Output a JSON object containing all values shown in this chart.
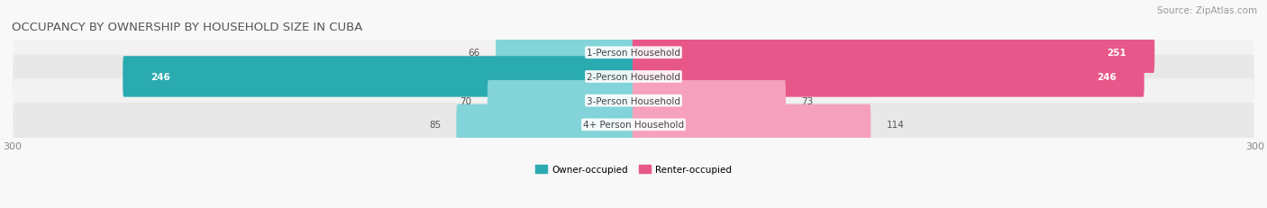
{
  "title": "OCCUPANCY BY OWNERSHIP BY HOUSEHOLD SIZE IN CUBA",
  "source": "Source: ZipAtlas.com",
  "categories": [
    "1-Person Household",
    "2-Person Household",
    "3-Person Household",
    "4+ Person Household"
  ],
  "owner_values": [
    66,
    246,
    70,
    85
  ],
  "renter_values": [
    251,
    246,
    73,
    114
  ],
  "owner_color_dark": "#2aabb0",
  "owner_color_light": "#82d4d8",
  "renter_color_dark": "#e8578a",
  "renter_color_light": "#f5a0bc",
  "row_bg_color_light": "#f2f2f2",
  "row_bg_color_dark": "#e8e8e8",
  "x_min": -300,
  "x_max": 300,
  "legend_owner": "Owner-occupied",
  "legend_renter": "Renter-occupied",
  "title_fontsize": 9.5,
  "source_fontsize": 7.5,
  "label_fontsize": 7.5,
  "value_fontsize": 7.5,
  "axis_label_fontsize": 8,
  "background_color": "#f8f8f8"
}
